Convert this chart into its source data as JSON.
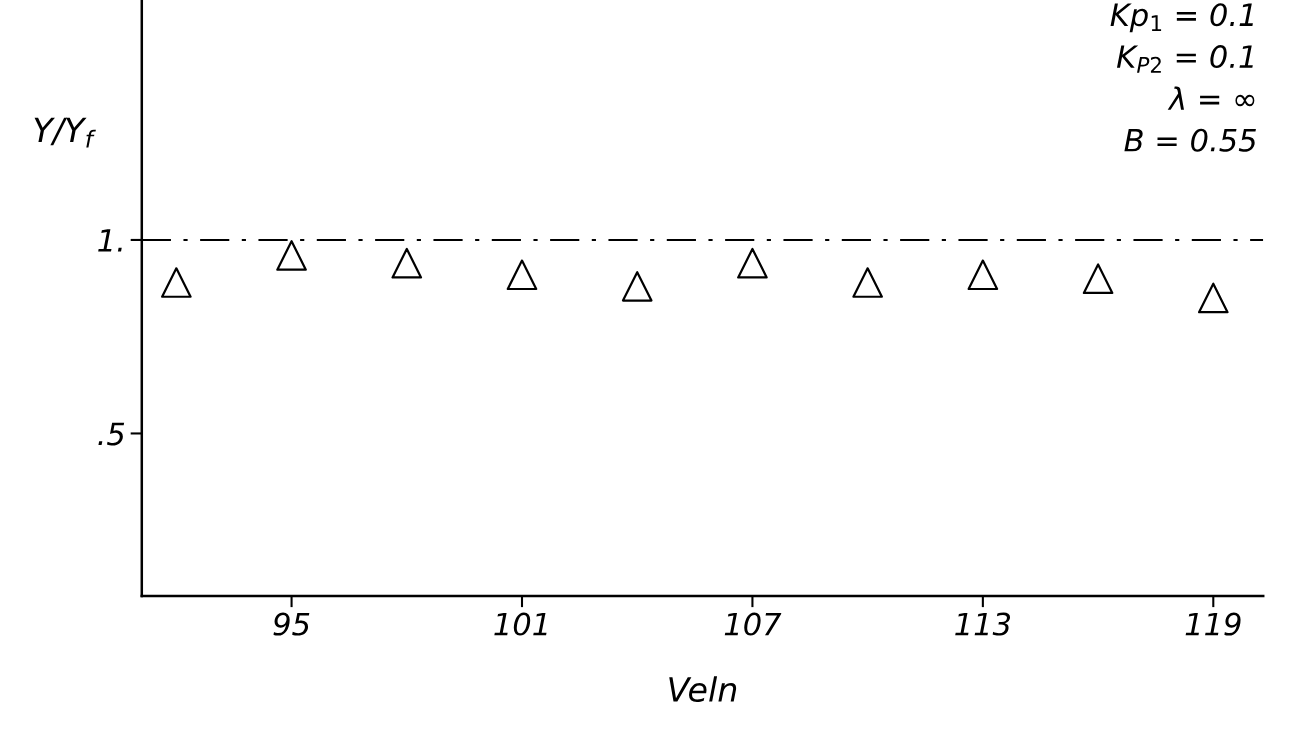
{
  "chart_data": {
    "type": "scatter",
    "xlabel": "Veln",
    "ylabel": "Y/Y$_{f}$",
    "x": [
      92,
      95,
      98,
      101,
      104,
      107,
      110,
      113,
      116,
      119
    ],
    "values": [
      0.89,
      0.96,
      0.94,
      0.91,
      0.88,
      0.94,
      0.89,
      0.91,
      0.9,
      0.85
    ],
    "color": "#000000",
    "marker": "triangle",
    "xlim": [
      91.1,
      120.3
    ],
    "xticks": [
      95,
      101,
      107,
      113,
      119
    ],
    "ylim": [
      0.08,
      1.62
    ],
    "yticks": [
      {
        "value": 0.5,
        "label": ".5"
      },
      {
        "value": 1,
        "label": "1."
      }
    ],
    "ref_lines": [
      {
        "axis": "y",
        "value": 1,
        "label": null,
        "color": "#000000",
        "line_style": "dashdot"
      }
    ],
    "annotations": [
      "Kp$_{1}$ = 0.1",
      "K$_{P2}$ = 0.1",
      "λ = ∞",
      "B = 0.55"
    ],
    "grid": false,
    "legend": false
  }
}
